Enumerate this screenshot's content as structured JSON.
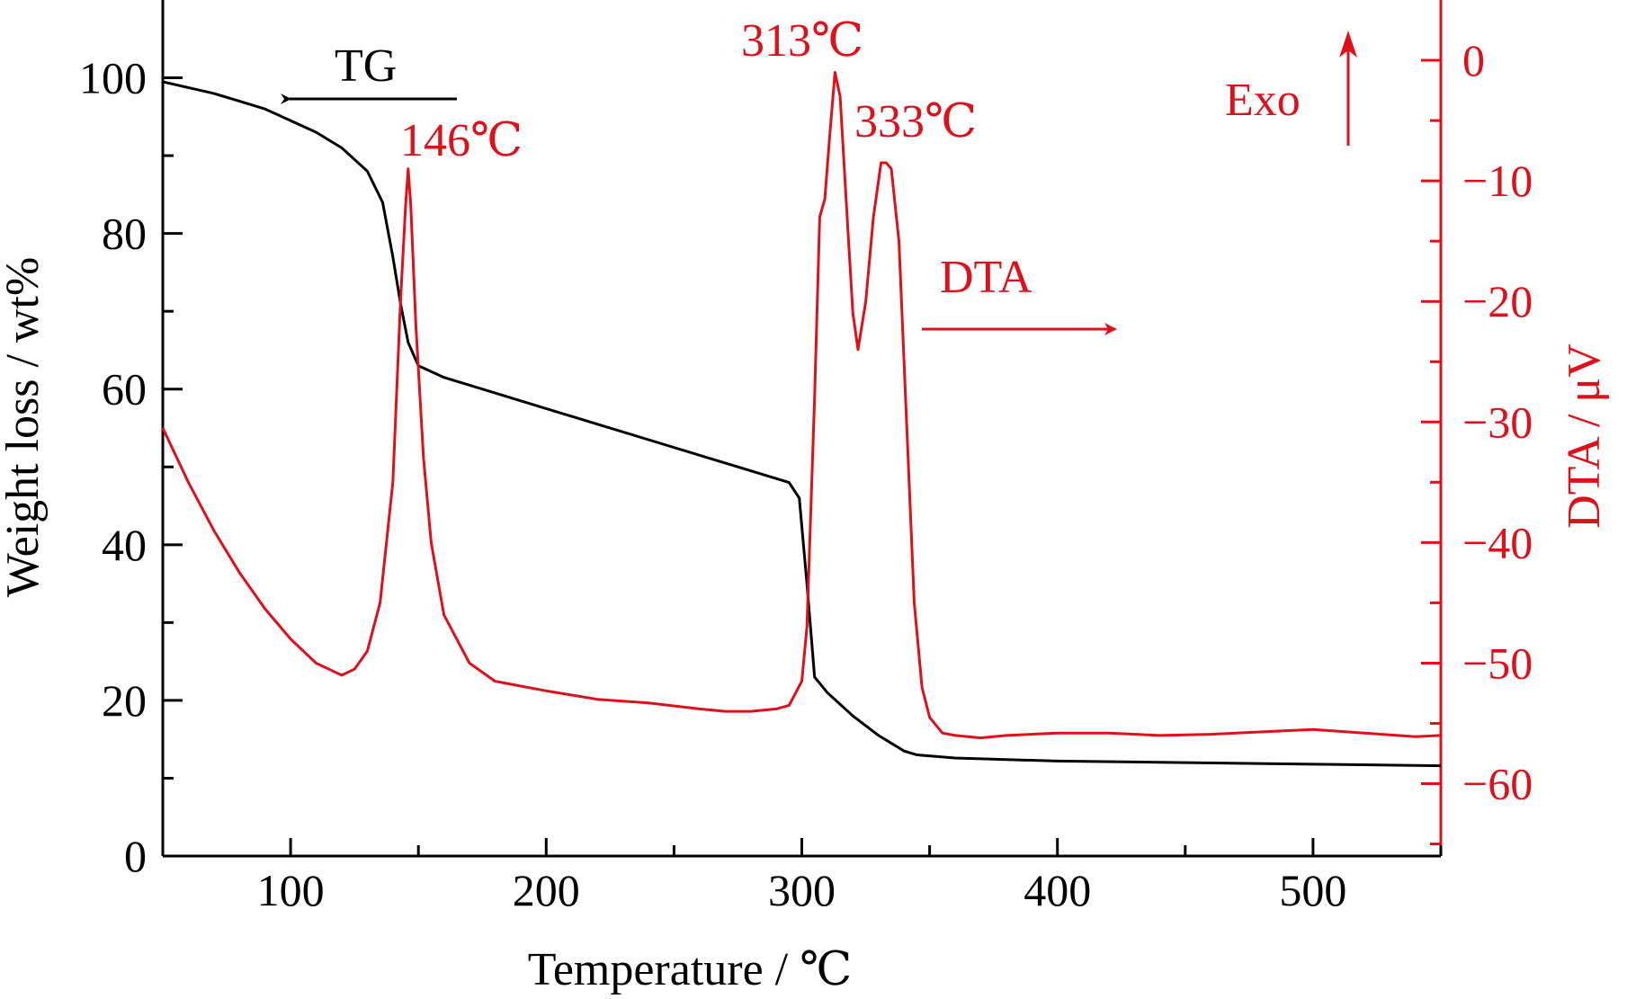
{
  "chart_data": {
    "type": "line",
    "x_axis": {
      "label": "Temperature / ℃",
      "range": [
        50,
        550
      ],
      "ticks": [
        100,
        200,
        300,
        400,
        500
      ],
      "tick_labels": [
        "100",
        "200",
        "300",
        "400",
        "500"
      ]
    },
    "y_left": {
      "label": "Weight loss / wt%",
      "range": [
        0,
        110
      ],
      "ticks": [
        0,
        20,
        40,
        60,
        80,
        100
      ],
      "tick_labels": [
        "0",
        "20",
        "40",
        "60",
        "80",
        "100"
      ],
      "color": "#000000"
    },
    "y_right": {
      "label": "DTA / μV",
      "range": [
        -66,
        5
      ],
      "ticks": [
        0,
        -10,
        -20,
        -30,
        -40,
        -50,
        -60
      ],
      "tick_labels": [
        "0",
        "−10",
        "−20",
        "−30",
        "−40",
        "−50",
        "−60"
      ],
      "color": "#e0101a"
    },
    "series": [
      {
        "name": "TG",
        "axis": "left",
        "color": "#000000",
        "x": [
          50,
          70,
          90,
          110,
          120,
          130,
          136,
          140,
          143,
          146,
          150,
          160,
          180,
          200,
          220,
          240,
          260,
          280,
          295,
          299,
          302,
          305,
          310,
          320,
          330,
          340,
          345,
          360,
          400,
          450,
          500,
          550
        ],
        "y": [
          99.5,
          98,
          96,
          93,
          91,
          88,
          84,
          77,
          71,
          66,
          63,
          61.5,
          59.5,
          57.5,
          55.5,
          53.5,
          51.5,
          49.5,
          48,
          46,
          35,
          23,
          21,
          18,
          15.5,
          13.5,
          13,
          12.6,
          12.2,
          12,
          11.8,
          11.6
        ]
      },
      {
        "name": "DTA",
        "axis": "right",
        "color": "#e0101a",
        "x": [
          50,
          60,
          70,
          80,
          90,
          100,
          110,
          115,
          120,
          125,
          130,
          135,
          140,
          143,
          145,
          146,
          147,
          149,
          152,
          155,
          160,
          170,
          180,
          200,
          220,
          240,
          260,
          270,
          280,
          290,
          295,
          300,
          302,
          305,
          307,
          309,
          311,
          313,
          315,
          318,
          320,
          322,
          325,
          328,
          331,
          333,
          335,
          338,
          341,
          344,
          347,
          350,
          355,
          360,
          370,
          380,
          400,
          420,
          440,
          460,
          480,
          500,
          520,
          540,
          550
        ],
        "y": [
          -30.5,
          -35,
          -39,
          -42.5,
          -45.5,
          -48,
          -50,
          -50.5,
          -51,
          -50.5,
          -49,
          -45,
          -35,
          -20,
          -12,
          -9,
          -12,
          -22,
          -33,
          -40,
          -46,
          -50,
          -51.5,
          -52.3,
          -53,
          -53.3,
          -53.8,
          -54,
          -54,
          -53.8,
          -53.5,
          -51.5,
          -47,
          -28,
          -13,
          -11.5,
          -6,
          -1,
          -3,
          -14,
          -21,
          -24,
          -20,
          -13,
          -8.5,
          -8.5,
          -9,
          -15,
          -30,
          -45,
          -52,
          -54.5,
          -55.8,
          -56,
          -56.2,
          -56,
          -55.8,
          -55.8,
          -56,
          -55.9,
          -55.7,
          -55.5,
          -55.8,
          -56.1,
          -56
        ]
      }
    ],
    "annotations": [
      {
        "text": "TG",
        "color": "#000000"
      },
      {
        "text": "146℃",
        "color": "#e0101a"
      },
      {
        "text": "313℃",
        "color": "#e0101a"
      },
      {
        "text": "333℃",
        "color": "#e0101a"
      },
      {
        "text": "DTA",
        "color": "#e0101a"
      },
      {
        "text": "Exo",
        "color": "#e0101a"
      }
    ],
    "legend": "none",
    "grid": false
  }
}
